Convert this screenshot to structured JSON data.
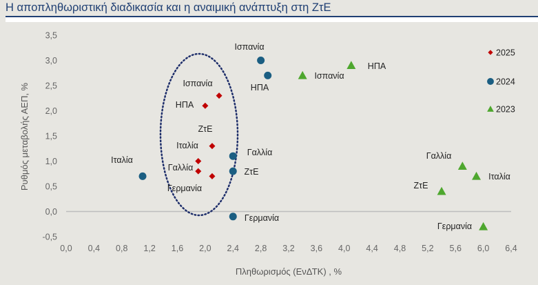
{
  "title": "Η αποπληθωριστική διαδικασία και η αναιμική ανάπτυξη στη ΖτΕ",
  "chart_data": {
    "type": "scatter",
    "title": "Η αποπληθωριστική διαδικασία και η αναιμική ανάπτυξη στη ΖτΕ",
    "xlabel": "Πληθωρισμός (ΕνΔΤΚ) , %",
    "ylabel": "Ρυθμός μεταβολής ΑΕΠ, %",
    "xlim": [
      0,
      6.4
    ],
    "ylim": [
      -0.5,
      3.5
    ],
    "x_ticks": [
      "0,0",
      "0,4",
      "0,8",
      "1,2",
      "1,6",
      "2,0",
      "2,4",
      "2,8",
      "3,2",
      "3,6",
      "4,0",
      "4,4",
      "4,8",
      "5,2",
      "5,6",
      "6,0",
      "6,4"
    ],
    "y_ticks": [
      "3,5",
      "3,0",
      "2,5",
      "2,0",
      "1,5",
      "1,0",
      "0,5",
      "0,0",
      "-0,5"
    ],
    "grid": false,
    "legend_position": "right",
    "series": [
      {
        "name": "2025",
        "marker": "diamond",
        "color": "#c00000",
        "points": [
          {
            "label": "Ισπανία",
            "x": 2.2,
            "y": 2.3
          },
          {
            "label": "ΗΠΑ",
            "x": 2.0,
            "y": 2.1
          },
          {
            "label": "ΖτΕ",
            "x": 2.1,
            "y": 1.3
          },
          {
            "label": "Ιταλία",
            "x": 1.9,
            "y": 1.0
          },
          {
            "label": "Γαλλία",
            "x": 1.9,
            "y": 0.8
          },
          {
            "label": "Γερμανία",
            "x": 2.1,
            "y": 0.7
          }
        ]
      },
      {
        "name": "2024",
        "marker": "circle",
        "color": "#1b5e82",
        "points": [
          {
            "label": "Ισπανία",
            "x": 2.8,
            "y": 3.0
          },
          {
            "label": "ΗΠΑ",
            "x": 2.9,
            "y": 2.7
          },
          {
            "label": "Ιταλία",
            "x": 1.1,
            "y": 0.7
          },
          {
            "label": "Γαλλία",
            "x": 2.4,
            "y": 1.1
          },
          {
            "label": "ΖτΕ",
            "x": 2.4,
            "y": 0.8
          },
          {
            "label": "Γερμανία",
            "x": 2.4,
            "y": -0.1
          }
        ]
      },
      {
        "name": "2023",
        "marker": "triangle",
        "color": "#4ea72e",
        "points": [
          {
            "label": "Ισπανία",
            "x": 3.4,
            "y": 2.7
          },
          {
            "label": "ΗΠΑ",
            "x": 4.1,
            "y": 2.9
          },
          {
            "label": "Γαλλία",
            "x": 5.7,
            "y": 0.9
          },
          {
            "label": "Ιταλία",
            "x": 5.9,
            "y": 0.7
          },
          {
            "label": "ΖτΕ",
            "x": 5.4,
            "y": 0.4
          },
          {
            "label": "Γερμανία",
            "x": 6.0,
            "y": -0.3
          }
        ]
      }
    ]
  }
}
